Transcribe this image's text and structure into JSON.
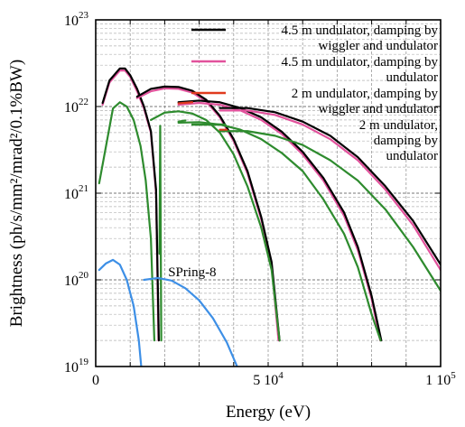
{
  "chart_data": {
    "type": "line",
    "xlabel": "Energy (eV)",
    "ylabel": "Brightness (ph/s/mm²/mrad²/0.1%BW)",
    "xlim": [
      0,
      100000
    ],
    "ylim": [
      1e+19,
      1e+23
    ],
    "yscale": "log",
    "grid": true,
    "legend_position": "top-right",
    "x_ticks": [
      {
        "value": 0,
        "label": "0"
      },
      {
        "value": 50000,
        "label": "5 10",
        "sup": "4"
      },
      {
        "value": 100000,
        "label": "1 10",
        "sup": "5"
      }
    ],
    "y_ticks": [
      {
        "value": 1e+19,
        "base": "10",
        "sup": "19"
      },
      {
        "value": 1e+20,
        "base": "10",
        "sup": "20"
      },
      {
        "value": 1e+21,
        "base": "10",
        "sup": "21"
      },
      {
        "value": 1e+22,
        "base": "10",
        "sup": "22"
      },
      {
        "value": 1e+23,
        "base": "10",
        "sup": "23"
      }
    ],
    "legend": [
      {
        "lines": [
          "4.5 m undulator, damping by",
          "wiggler and undulator"
        ],
        "color": "#000000"
      },
      {
        "lines": [
          "4.5 m undulator, damping by",
          "undulator"
        ],
        "color": "#e2529c"
      },
      {
        "lines": [
          "2 m undulator, damping by",
          "wiggler and undulator"
        ],
        "color": "#e03a1e"
      },
      {
        "lines": [
          "2 m undulator,",
          "damping by",
          "undulator"
        ],
        "color": "#2e8b2e"
      }
    ],
    "annotations": [
      {
        "text": "SPring-8",
        "x": 21000,
        "y": 1.1e+20
      }
    ],
    "series": [
      {
        "color": "#2e8b2e",
        "width": 2.2,
        "points": [
          [
            1000,
            1.3e+21
          ],
          [
            5000,
            9.5e+21
          ],
          [
            7000,
            1.12e+22
          ],
          [
            9000,
            1e+22
          ],
          [
            11000,
            7e+21
          ],
          [
            13000,
            3.5e+21
          ],
          [
            14500,
            1.4e+21
          ],
          [
            16000,
            3e+20
          ],
          [
            17000,
            2e+19
          ]
        ]
      },
      {
        "color": "#e2529c",
        "width": 2.2,
        "points": [
          [
            2000,
            1.05e+22
          ],
          [
            4000,
            1.9e+22
          ],
          [
            7000,
            2.6e+22
          ],
          [
            8500,
            2.6e+22
          ],
          [
            10000,
            2.2e+22
          ],
          [
            12000,
            1.5e+22
          ],
          [
            14000,
            9.5e+21
          ],
          [
            16000,
            5e+21
          ],
          [
            17500,
            1e+21
          ],
          [
            18200,
            2e+19
          ]
        ]
      },
      {
        "color": "#000000",
        "width": 2.2,
        "points": [
          [
            2000,
            1.1e+22
          ],
          [
            4000,
            2e+22
          ],
          [
            7000,
            2.75e+22
          ],
          [
            8500,
            2.75e+22
          ],
          [
            10000,
            2.3e+22
          ],
          [
            12000,
            1.6e+22
          ],
          [
            14000,
            1e+22
          ],
          [
            16000,
            5.2e+21
          ],
          [
            17500,
            1.1e+21
          ],
          [
            18300,
            2e+19
          ]
        ]
      },
      {
        "color": "#2e8b2e",
        "width": 2.2,
        "points": [
          [
            18500,
            2e+20
          ],
          [
            18700,
            6e+21
          ],
          [
            19000,
            2e+19
          ]
        ]
      },
      {
        "color": "#e2529c",
        "width": 2.2,
        "points": [
          [
            12000,
            1.25e+22
          ],
          [
            16000,
            1.5e+22
          ],
          [
            20000,
            1.62e+22
          ],
          [
            24000,
            1.6e+22
          ],
          [
            28000,
            1.45e+22
          ],
          [
            32000,
            1.15e+22
          ],
          [
            36000,
            7.5e+21
          ],
          [
            40000,
            4e+21
          ],
          [
            44000,
            1.7e+21
          ],
          [
            48000,
            5e+20
          ],
          [
            51000,
            1.5e+20
          ],
          [
            53000,
            2e+19
          ]
        ]
      },
      {
        "color": "#000000",
        "width": 2.2,
        "points": [
          [
            12000,
            1.3e+22
          ],
          [
            16000,
            1.6e+22
          ],
          [
            20000,
            1.7e+22
          ],
          [
            24000,
            1.68e+22
          ],
          [
            28000,
            1.52e+22
          ],
          [
            32000,
            1.2e+22
          ],
          [
            36000,
            7.8e+21
          ],
          [
            40000,
            4.2e+21
          ],
          [
            44000,
            1.8e+21
          ],
          [
            48000,
            5.3e+20
          ],
          [
            51000,
            1.6e+20
          ],
          [
            53300,
            2e+19
          ]
        ]
      },
      {
        "color": "#2e8b2e",
        "width": 2.2,
        "points": [
          [
            16000,
            7e+21
          ],
          [
            20000,
            8.5e+21
          ],
          [
            24000,
            8.8e+21
          ],
          [
            28000,
            8.3e+21
          ],
          [
            32000,
            7e+21
          ],
          [
            36000,
            5e+21
          ],
          [
            40000,
            2.8e+21
          ],
          [
            44000,
            1.2e+21
          ],
          [
            48000,
            4e+20
          ],
          [
            51000,
            1.3e+20
          ],
          [
            53300,
            2e+19
          ]
        ]
      },
      {
        "color": "#e2529c",
        "width": 2.2,
        "points": [
          [
            24000,
            1.05e+22
          ],
          [
            30000,
            1.1e+22
          ],
          [
            36000,
            1.05e+22
          ],
          [
            42000,
            9e+21
          ],
          [
            48000,
            7e+21
          ],
          [
            54000,
            4.8e+21
          ],
          [
            60000,
            2.8e+21
          ],
          [
            66000,
            1.4e+21
          ],
          [
            72000,
            5.5e+20
          ],
          [
            76000,
            2.2e+20
          ],
          [
            80000,
            6e+19
          ],
          [
            82500,
            2e+19
          ]
        ]
      },
      {
        "color": "#000000",
        "width": 2.2,
        "points": [
          [
            24000,
            1.12e+22
          ],
          [
            30000,
            1.17e+22
          ],
          [
            36000,
            1.12e+22
          ],
          [
            42000,
            9.6e+21
          ],
          [
            48000,
            7.5e+21
          ],
          [
            54000,
            5.1e+21
          ],
          [
            60000,
            3e+21
          ],
          [
            66000,
            1.5e+21
          ],
          [
            72000,
            6e+20
          ],
          [
            76000,
            2.4e+20
          ],
          [
            80000,
            6.5e+19
          ],
          [
            82800,
            2e+19
          ]
        ]
      },
      {
        "color": "#2e8b2e",
        "width": 2.2,
        "points": [
          [
            24000,
            6.5e+21
          ],
          [
            30000,
            6.6e+21
          ],
          [
            36000,
            6.2e+21
          ],
          [
            42000,
            5.4e+21
          ],
          [
            48000,
            4.2e+21
          ],
          [
            54000,
            2.9e+21
          ],
          [
            60000,
            1.8e+21
          ],
          [
            66000,
            8.5e+20
          ],
          [
            72000,
            3.4e+20
          ],
          [
            76000,
            1.4e+20
          ],
          [
            80000,
            4e+19
          ],
          [
            82600,
            2e+19
          ]
        ]
      },
      {
        "color": "#e2529c",
        "width": 2.2,
        "points": [
          [
            36000,
            9e+21
          ],
          [
            44000,
            9e+21
          ],
          [
            52000,
            8e+21
          ],
          [
            60000,
            6.2e+21
          ],
          [
            68000,
            4.2e+21
          ],
          [
            76000,
            2.4e+21
          ],
          [
            84000,
            1.1e+21
          ],
          [
            92000,
            4.3e+20
          ],
          [
            100000,
            1.3e+20
          ]
        ]
      },
      {
        "color": "#000000",
        "width": 2.2,
        "points": [
          [
            36000,
            9.6e+21
          ],
          [
            44000,
            9.6e+21
          ],
          [
            52000,
            8.6e+21
          ],
          [
            60000,
            6.7e+21
          ],
          [
            68000,
            4.6e+21
          ],
          [
            76000,
            2.6e+21
          ],
          [
            84000,
            1.2e+21
          ],
          [
            92000,
            4.8e+20
          ],
          [
            100000,
            1.5e+20
          ]
        ]
      },
      {
        "color": "#2e8b2e",
        "width": 2.2,
        "points": [
          [
            36000,
            5.2e+21
          ],
          [
            44000,
            5.2e+21
          ],
          [
            52000,
            4.6e+21
          ],
          [
            60000,
            3.6e+21
          ],
          [
            68000,
            2.4e+21
          ],
          [
            76000,
            1.4e+21
          ],
          [
            84000,
            6.5e+20
          ],
          [
            92000,
            2.4e+20
          ],
          [
            100000,
            7.5e+19
          ]
        ]
      },
      {
        "color": "#2e8b2e",
        "width": 2.2,
        "points": [
          [
            24000,
            6.7e+21
          ],
          [
            26000,
            6.9e+21
          ]
        ]
      },
      {
        "color": "#e03a1e",
        "width": 2.2,
        "points": [
          [
            24000,
            1.09e+22
          ],
          [
            28000,
            1.12e+22
          ]
        ]
      },
      {
        "color": "#e03a1e",
        "width": 2.2,
        "points": [
          [
            36000,
            5.4e+21
          ],
          [
            38000,
            5.4e+21
          ]
        ]
      },
      {
        "color": "#3d8fe6",
        "width": 2.2,
        "points": [
          [
            1000,
            1.3e+20
          ],
          [
            3000,
            1.55e+20
          ],
          [
            5000,
            1.7e+20
          ],
          [
            7000,
            1.5e+20
          ],
          [
            9000,
            1e+20
          ],
          [
            11000,
            5e+19
          ],
          [
            12500,
            2e+19
          ],
          [
            13200,
            1e+19
          ]
        ]
      },
      {
        "color": "#3d8fe6",
        "width": 2.2,
        "points": [
          [
            14000,
            1e+20
          ],
          [
            18000,
            1.05e+20
          ],
          [
            22000,
            9.8e+19
          ],
          [
            26000,
            8e+19
          ],
          [
            30000,
            5.8e+19
          ],
          [
            34000,
            3.6e+19
          ],
          [
            38000,
            1.9e+19
          ],
          [
            41000,
            1e+19
          ]
        ]
      }
    ]
  }
}
